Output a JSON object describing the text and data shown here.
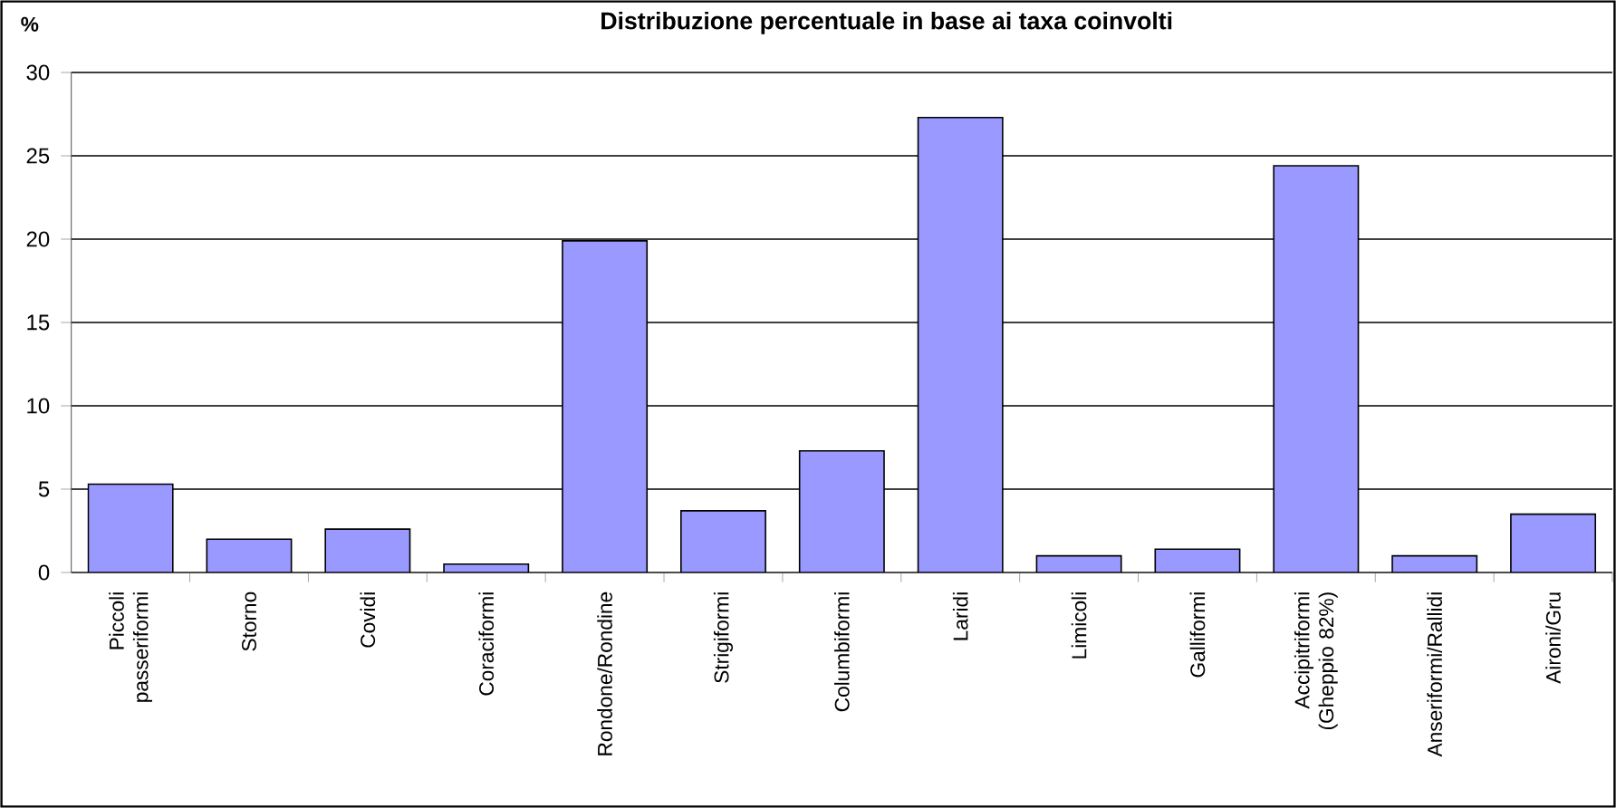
{
  "chart_data": {
    "type": "bar",
    "title": "Distribuzione percentuale in base ai taxa coinvolti",
    "ylabel": "%",
    "categories": [
      "Piccoli passeriformi",
      "Storno",
      "Covidi",
      "Coraciformi",
      "Rondone/Rondine",
      "Strigiformi",
      "Columbiformi",
      "Laridi",
      "Limicoli",
      "Galliformi",
      "Accipitriformi (Gheppio 82%)",
      "Anseriformi/Rallidi",
      "Aironi/Gru"
    ],
    "values": [
      5.3,
      2.0,
      2.6,
      0.5,
      19.9,
      3.7,
      7.3,
      27.3,
      1.0,
      1.4,
      24.4,
      1.0,
      3.5
    ],
    "color": "#9999ff",
    "ylim": [
      0,
      30
    ],
    "yticks": [
      0,
      5,
      10,
      15,
      20,
      25,
      30
    ],
    "grid": "y"
  }
}
